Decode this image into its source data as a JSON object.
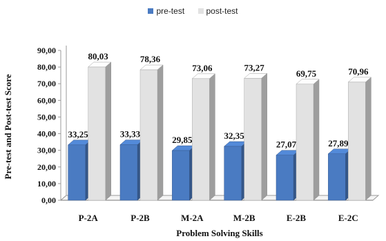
{
  "chart_data": {
    "type": "bar",
    "title": "",
    "xlabel": "Problem Solving Skills",
    "ylabel": "Pre-test and Post-test Score",
    "categories": [
      "P-2A",
      "P-2B",
      "M-2A",
      "M-2B",
      "E-2B",
      "E-2C"
    ],
    "series": [
      {
        "name": "pre-test",
        "color": "#4a7bc2",
        "values": [
          33.25,
          33.33,
          29.85,
          32.35,
          27.07,
          27.89
        ]
      },
      {
        "name": "post-test",
        "color": "#e2e2e2",
        "values": [
          80.03,
          78.36,
          73.06,
          73.27,
          69.75,
          70.96
        ]
      }
    ],
    "value_labels": {
      "pre-test": [
        "33,25",
        "33,33",
        "29,85",
        "32,35",
        "27,07",
        "27,89"
      ],
      "post-test": [
        "80,03",
        "78,36",
        "73,06",
        "73,27",
        "69,75",
        "70,96"
      ]
    },
    "ylim": [
      0,
      90
    ],
    "yticks": [
      "0,00",
      "10,00",
      "20,00",
      "30,00",
      "40,00",
      "50,00",
      "60,00",
      "70,00",
      "80,00",
      "90,00"
    ],
    "legend_position": "top",
    "grid": false,
    "style": "3d-bar"
  }
}
